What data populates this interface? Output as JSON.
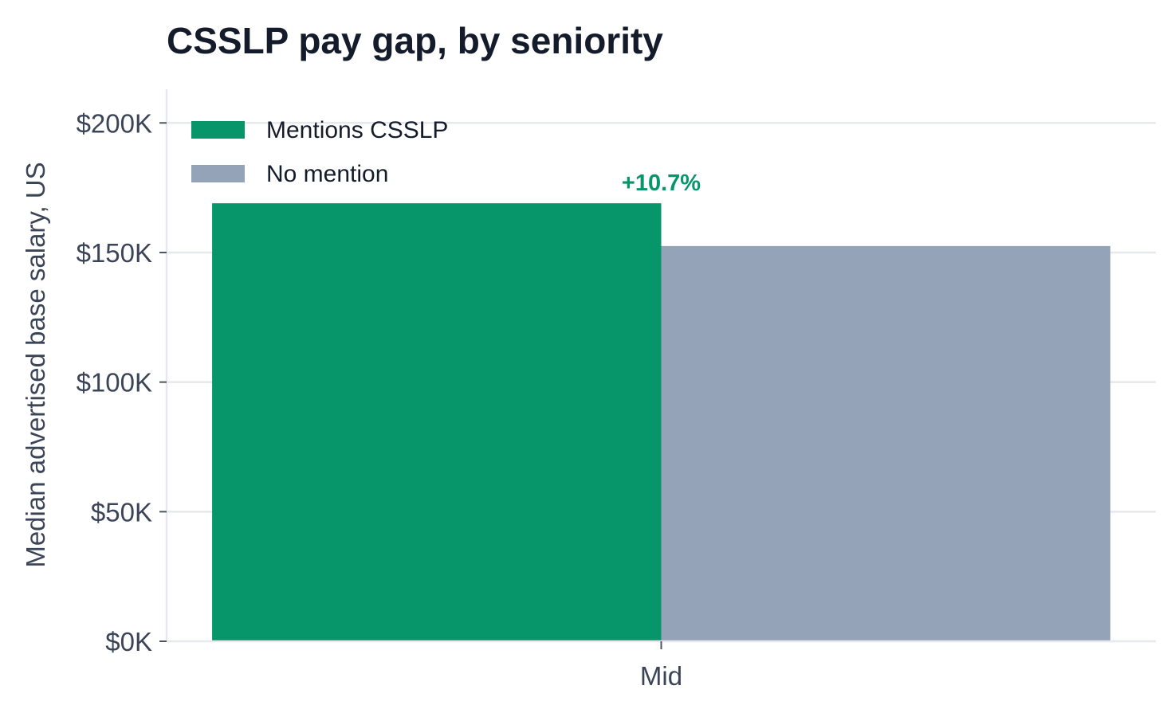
{
  "chart_data": {
    "type": "bar",
    "title": "CSSLP pay gap, by seniority",
    "xlabel": "",
    "ylabel": "Median advertised base salary, US",
    "categories": [
      "Mid"
    ],
    "series": [
      {
        "name": "Mentions CSSLP",
        "values": [
          169000
        ],
        "color": "#079669"
      },
      {
        "name": "No mention",
        "values": [
          152500
        ],
        "color": "#94a3b8"
      }
    ],
    "ylim": [
      0,
      213000
    ],
    "yticks": [
      0,
      50000,
      100000,
      150000,
      200000
    ],
    "ytick_labels": [
      "$0K",
      "$50K",
      "$100K",
      "$150K",
      "$200K"
    ],
    "annotations": [
      {
        "category": "Mid",
        "text": "+10.7%",
        "color": "#079669"
      }
    ],
    "grid": "horizontal",
    "legend_position": "top-left"
  }
}
